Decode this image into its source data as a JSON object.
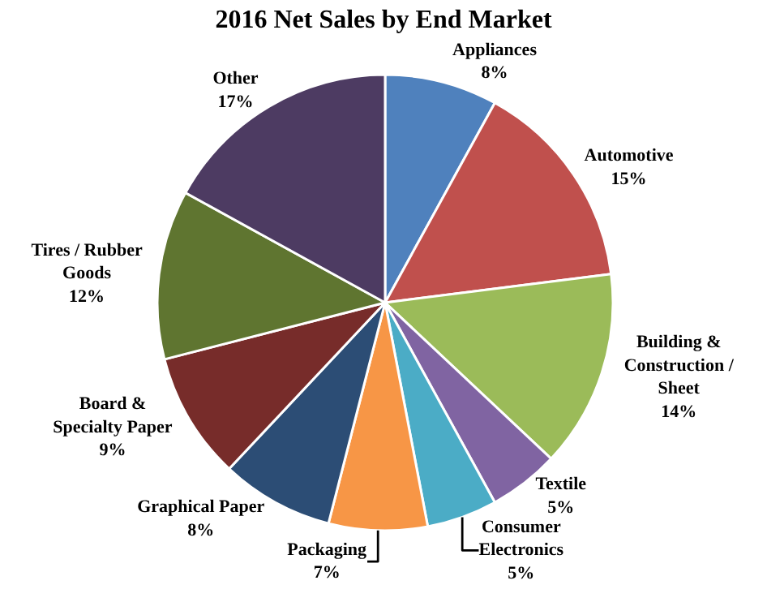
{
  "chart_data": {
    "type": "pie",
    "title": "2016 Net Sales by End Market",
    "categories": [
      "Appliances",
      "Automotive",
      "Building & Construction / Sheet",
      "Textile",
      "Consumer Electronics",
      "Packaging",
      "Graphical Paper",
      "Board & Specialty Paper",
      "Tires / Rubber Goods",
      "Other"
    ],
    "values": [
      8,
      15,
      14,
      5,
      5,
      7,
      8,
      9,
      12,
      17
    ],
    "value_labels": [
      "8%",
      "15%",
      "14%",
      "5%",
      "5%",
      "7%",
      "8%",
      "9%",
      "12%",
      "17%"
    ],
    "colors": [
      "#4f81bd",
      "#c0504d",
      "#9bbb59",
      "#8064a2",
      "#4bacc6",
      "#f79646",
      "#2c4d75",
      "#772c2a",
      "#5f7530",
      "#4d3b62"
    ]
  }
}
